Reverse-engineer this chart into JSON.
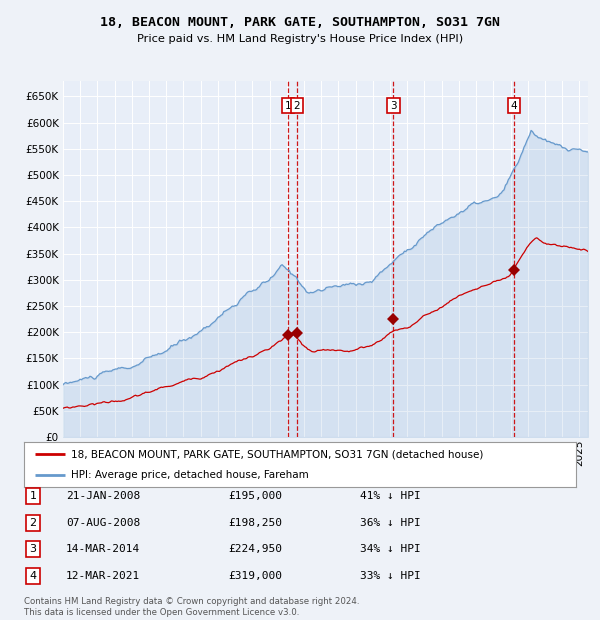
{
  "title": "18, BEACON MOUNT, PARK GATE, SOUTHAMPTON, SO31 7GN",
  "subtitle": "Price paid vs. HM Land Registry's House Price Index (HPI)",
  "background_color": "#eef2f8",
  "plot_bg_color": "#e8eef8",
  "y_min": 0,
  "y_max": 680000,
  "y_ticks": [
    0,
    50000,
    100000,
    150000,
    200000,
    250000,
    300000,
    350000,
    400000,
    450000,
    500000,
    550000,
    600000,
    650000
  ],
  "x_min": 1995,
  "x_max": 2025.5,
  "sale_dates": [
    2008.056,
    2008.597,
    2014.2,
    2021.194
  ],
  "sale_prices": [
    195000,
    198250,
    224950,
    319000
  ],
  "sale_labels": [
    "1",
    "2",
    "3",
    "4"
  ],
  "vline_color": "#cc0000",
  "sale_marker_color": "#990000",
  "hpi_line_color": "#6699cc",
  "price_line_color": "#cc0000",
  "legend_entries": [
    "18, BEACON MOUNT, PARK GATE, SOUTHAMPTON, SO31 7GN (detached house)",
    "HPI: Average price, detached house, Fareham"
  ],
  "table_rows": [
    {
      "num": "1",
      "date": "21-JAN-2008",
      "price": "£195,000",
      "pct": "41% ↓ HPI"
    },
    {
      "num": "2",
      "date": "07-AUG-2008",
      "price": "£198,250",
      "pct": "36% ↓ HPI"
    },
    {
      "num": "3",
      "date": "14-MAR-2014",
      "price": "£224,950",
      "pct": "34% ↓ HPI"
    },
    {
      "num": "4",
      "date": "12-MAR-2021",
      "price": "£319,000",
      "pct": "33% ↓ HPI"
    }
  ],
  "footer": [
    "Contains HM Land Registry data © Crown copyright and database right 2024.",
    "This data is licensed under the Open Government Licence v3.0."
  ]
}
